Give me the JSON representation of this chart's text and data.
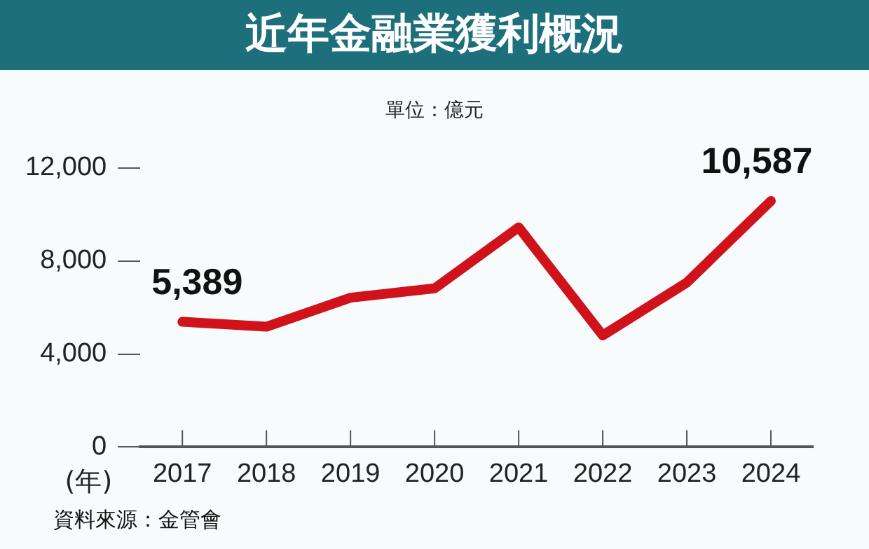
{
  "chart_data": {
    "type": "line",
    "title": "近年金融業獲利概況",
    "subtitle": "單位：億元",
    "xlabel": "(年)",
    "categories": [
      "2017",
      "2018",
      "2019",
      "2020",
      "2021",
      "2022",
      "2023",
      "2024"
    ],
    "series": [
      {
        "color": "#d0121b",
        "values": [
          5389,
          5175,
          6425,
          6825,
          9450,
          4800,
          7075,
          10587
        ],
        "value_labels": [
          "5,389",
          null,
          null,
          null,
          null,
          null,
          null,
          "10,587"
        ]
      }
    ],
    "ylim": [
      0,
      12000
    ],
    "yticks": [
      {
        "value": 0,
        "label": "0"
      },
      {
        "value": 4000,
        "label": "4,000"
      },
      {
        "value": 8000,
        "label": "8,000"
      },
      {
        "value": 12000,
        "label": "12,000"
      }
    ],
    "grid": false,
    "legend": false,
    "marker": "none",
    "line_style": "solid",
    "annotations": [
      "資料來源：金管會"
    ]
  }
}
